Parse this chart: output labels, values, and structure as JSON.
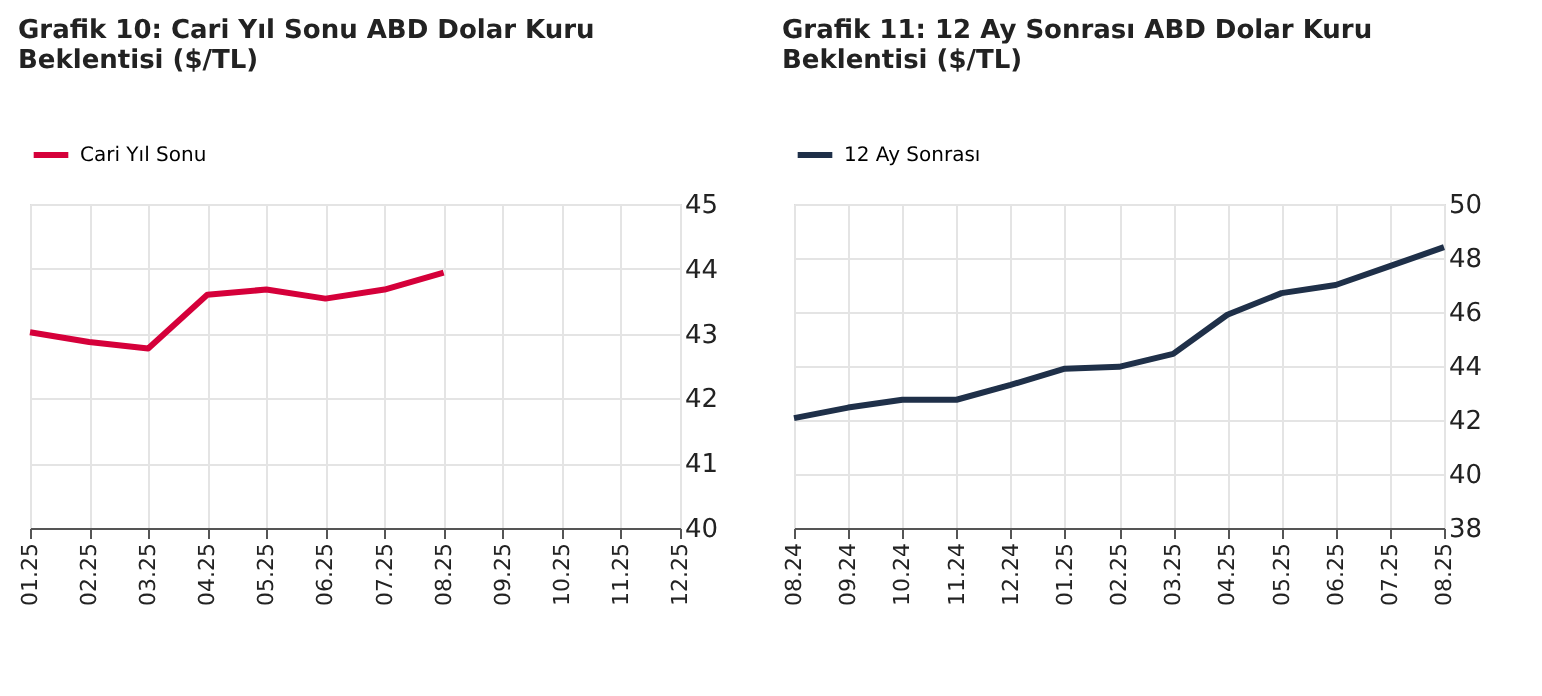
{
  "chart_data": [
    {
      "type": "line",
      "title": [
        "Grafik 10: Cari Yıl Sonu ABD Dolar Kuru",
        "Beklentisi ($/TL)"
      ],
      "categories": [
        "01.25",
        "02.25",
        "03.25",
        "04.25",
        "05.25",
        "06.25",
        "07.25",
        "08.25",
        "09.25",
        "10.25",
        "11.25",
        "12.25"
      ],
      "series": [
        {
          "name": "Cari Yıl Sonu",
          "color": "#d5003a",
          "values": [
            43.02,
            42.87,
            42.77,
            43.6,
            43.68,
            43.54,
            43.68,
            43.94,
            null,
            null,
            null,
            null
          ]
        }
      ],
      "ylim": [
        40,
        45
      ],
      "yticks": [
        40,
        41,
        42,
        43,
        44,
        45
      ],
      "grid": true,
      "legend": "top"
    },
    {
      "type": "line",
      "title": [
        "Grafik 11: 12 Ay Sonrası ABD Dolar Kuru",
        "Beklentisi ($/TL)"
      ],
      "categories": [
        "08.24",
        "09.24",
        "10.24",
        "11.24",
        "12.24",
        "01.25",
        "02.25",
        "03.25",
        "04.25",
        "05.25",
        "06.25",
        "07.25",
        "08.25"
      ],
      "series": [
        {
          "name": "12 Ay Sonrası",
          "color": "#1f3049",
          "values": [
            42.07,
            42.46,
            42.75,
            42.75,
            43.3,
            43.9,
            43.97,
            44.45,
            45.9,
            46.7,
            47.0,
            47.7,
            48.4
          ]
        }
      ],
      "ylim": [
        38,
        50
      ],
      "yticks": [
        38,
        40,
        42,
        44,
        46,
        48,
        50
      ],
      "grid": true,
      "legend": "top"
    }
  ]
}
